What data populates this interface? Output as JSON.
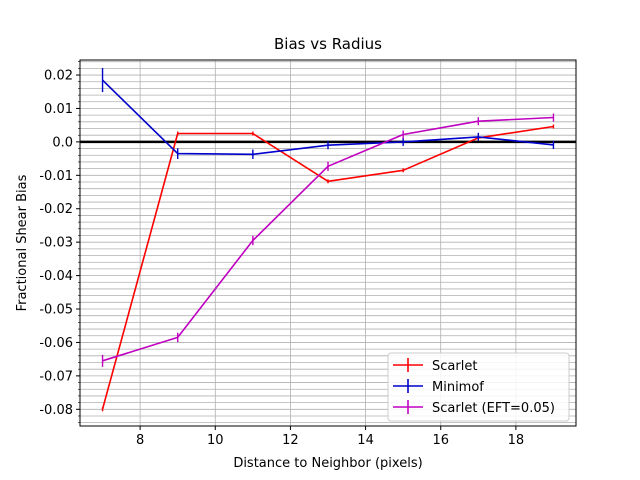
{
  "chart_data": {
    "type": "line",
    "title": "Bias vs Radius",
    "xlabel": "Distance to Neighbor (pixels)",
    "ylabel": "Fractional Shear Bias",
    "xlim": [
      6.4,
      19.6
    ],
    "ylim": [
      -0.085,
      0.0245
    ],
    "x_ticks": [
      8,
      10,
      12,
      14,
      16,
      18
    ],
    "x_tick_labels": [
      "8",
      "10",
      "12",
      "14",
      "16",
      "18"
    ],
    "y_ticks": [
      0.02,
      0.01,
      0.0,
      -0.01,
      -0.02,
      -0.03,
      -0.04,
      -0.05,
      -0.06,
      -0.07,
      -0.08
    ],
    "y_tick_labels": [
      "0.02",
      "0.01",
      "0.0",
      "-0.01",
      "-0.02",
      "-0.03",
      "-0.04",
      "-0.05",
      "-0.06",
      "-0.07",
      "-0.08"
    ],
    "y_minor_step": 0.002,
    "grid": true,
    "reference_line_y": 0.0,
    "legend_position": "lower-right",
    "series": [
      {
        "name": "Scarlet",
        "color": "#ff0000",
        "x": [
          7,
          9,
          11,
          13,
          15,
          17,
          19
        ],
        "y": [
          -0.08,
          0.0025,
          0.0025,
          -0.0118,
          -0.0085,
          0.0012,
          0.0046
        ],
        "err": [
          0,
          0,
          0,
          0,
          0,
          0,
          0
        ]
      },
      {
        "name": "Minimof",
        "color": "#0000cc",
        "x": [
          7,
          9,
          11,
          13,
          15,
          17,
          19
        ],
        "y": [
          0.0185,
          -0.0035,
          -0.0037,
          -0.001,
          0.0,
          0.0015,
          -0.0009
        ],
        "err": [
          0.003,
          0.001,
          0.0008,
          0.0006,
          0.0006,
          0.0006,
          0.0006
        ]
      },
      {
        "name": "Scarlet (EFT=0.05)",
        "color": "#c000c0",
        "x": [
          7,
          9,
          11,
          13,
          15,
          17,
          19
        ],
        "y": [
          -0.0655,
          -0.0585,
          -0.0295,
          -0.0073,
          0.0022,
          0.0062,
          0.0073
        ],
        "err": [
          0.0012,
          0.0008,
          0.0008,
          0.0008,
          0.0006,
          0.0006,
          0.0006
        ]
      }
    ]
  }
}
